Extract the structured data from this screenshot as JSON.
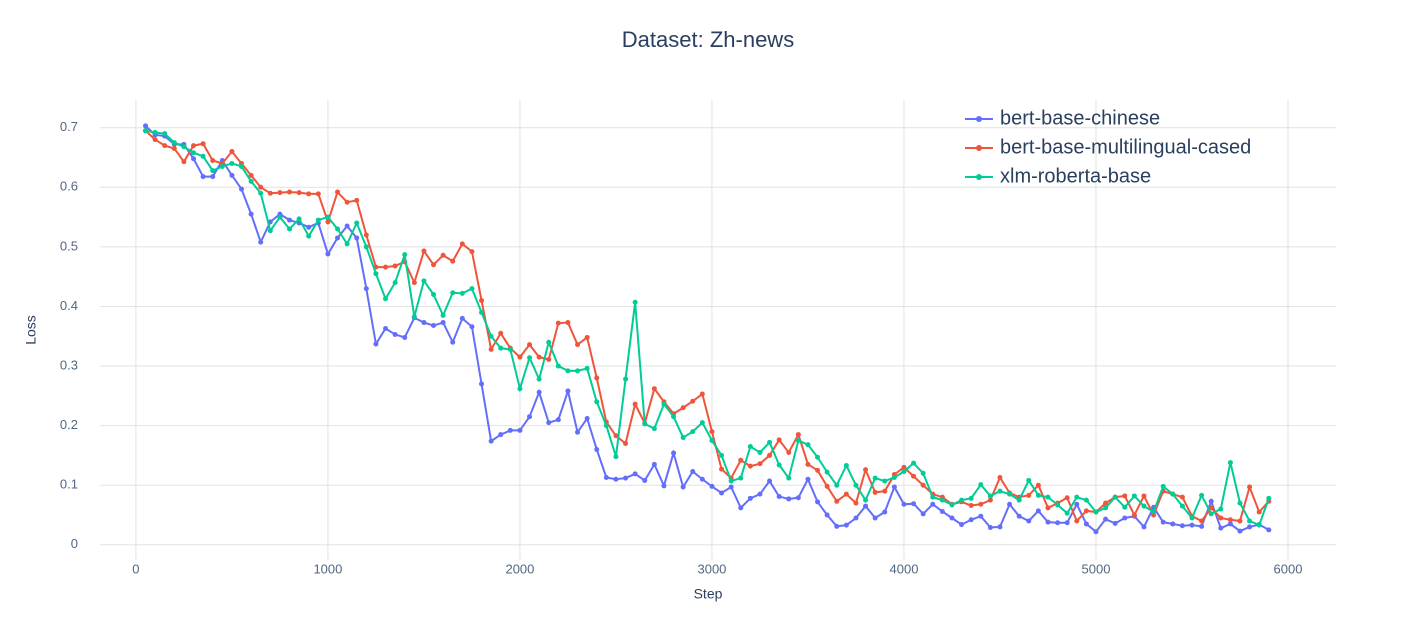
{
  "chart_data": {
    "type": "line",
    "title": "Dataset: Zh-news",
    "xlabel": "Step",
    "ylabel": "Loss",
    "x": [
      50,
      100,
      150,
      200,
      250,
      300,
      350,
      400,
      450,
      500,
      550,
      600,
      650,
      700,
      750,
      800,
      850,
      900,
      950,
      1000,
      1050,
      1100,
      1150,
      1200,
      1250,
      1300,
      1350,
      1400,
      1450,
      1500,
      1550,
      1600,
      1650,
      1700,
      1750,
      1800,
      1850,
      1900,
      1950,
      2000,
      2050,
      2100,
      2150,
      2200,
      2250,
      2300,
      2350,
      2400,
      2450,
      2500,
      2550,
      2600,
      2650,
      2700,
      2750,
      2800,
      2850,
      2900,
      2950,
      3000,
      3050,
      3100,
      3150,
      3200,
      3250,
      3300,
      3350,
      3400,
      3450,
      3500,
      3550,
      3600,
      3650,
      3700,
      3750,
      3800,
      3850,
      3900,
      3950,
      4000,
      4050,
      4100,
      4150,
      4200,
      4250,
      4300,
      4350,
      4400,
      4450,
      4500,
      4550,
      4600,
      4650,
      4700,
      4750,
      4800,
      4850,
      4900,
      4950,
      5000,
      5050,
      5100,
      5150,
      5200,
      5250,
      5300,
      5350,
      5400,
      5450,
      5500,
      5550,
      5600,
      5650,
      5700,
      5750,
      5800,
      5850,
      5900
    ],
    "series": [
      {
        "name": "bert-base-chinese",
        "color": "#636efa",
        "values": [
          0.703,
          0.688,
          0.686,
          0.672,
          0.672,
          0.648,
          0.618,
          0.618,
          0.645,
          0.62,
          0.597,
          0.555,
          0.508,
          0.542,
          0.555,
          0.545,
          0.54,
          0.533,
          0.54,
          0.488,
          0.515,
          0.535,
          0.515,
          0.43,
          0.337,
          0.363,
          0.353,
          0.348,
          0.381,
          0.373,
          0.368,
          0.373,
          0.34,
          0.38,
          0.366,
          0.27,
          0.174,
          0.185,
          0.192,
          0.192,
          0.215,
          0.256,
          0.205,
          0.21,
          0.258,
          0.189,
          0.212,
          0.16,
          0.113,
          0.11,
          0.112,
          0.119,
          0.108,
          0.135,
          0.099,
          0.154,
          0.097,
          0.123,
          0.11,
          0.098,
          0.087,
          0.097,
          0.062,
          0.078,
          0.085,
          0.107,
          0.081,
          0.077,
          0.079,
          0.11,
          0.072,
          0.05,
          0.031,
          0.033,
          0.045,
          0.065,
          0.045,
          0.055,
          0.097,
          0.068,
          0.069,
          0.052,
          0.068,
          0.056,
          0.045,
          0.034,
          0.042,
          0.048,
          0.029,
          0.03,
          0.068,
          0.048,
          0.04,
          0.057,
          0.038,
          0.037,
          0.037,
          0.068,
          0.035,
          0.022,
          0.043,
          0.036,
          0.045,
          0.048,
          0.03,
          0.063,
          0.038,
          0.035,
          0.032,
          0.033,
          0.031,
          0.073,
          0.028,
          0.035,
          0.023,
          0.03,
          0.034,
          0.025
        ]
      },
      {
        "name": "bert-base-multilingual-cased",
        "color": "#ef553b",
        "values": [
          0.695,
          0.68,
          0.67,
          0.665,
          0.643,
          0.67,
          0.673,
          0.645,
          0.64,
          0.66,
          0.64,
          0.62,
          0.6,
          0.59,
          0.591,
          0.592,
          0.591,
          0.589,
          0.589,
          0.542,
          0.592,
          0.575,
          0.578,
          0.52,
          0.466,
          0.466,
          0.468,
          0.475,
          0.44,
          0.493,
          0.47,
          0.486,
          0.476,
          0.505,
          0.492,
          0.41,
          0.328,
          0.355,
          0.33,
          0.315,
          0.336,
          0.315,
          0.311,
          0.372,
          0.373,
          0.336,
          0.348,
          0.28,
          0.206,
          0.183,
          0.17,
          0.236,
          0.204,
          0.262,
          0.24,
          0.22,
          0.23,
          0.241,
          0.253,
          0.19,
          0.127,
          0.112,
          0.142,
          0.132,
          0.136,
          0.15,
          0.176,
          0.155,
          0.185,
          0.135,
          0.125,
          0.098,
          0.073,
          0.085,
          0.07,
          0.126,
          0.088,
          0.09,
          0.118,
          0.13,
          0.115,
          0.1,
          0.085,
          0.08,
          0.068,
          0.072,
          0.066,
          0.068,
          0.075,
          0.113,
          0.087,
          0.08,
          0.083,
          0.1,
          0.062,
          0.07,
          0.079,
          0.04,
          0.057,
          0.055,
          0.07,
          0.08,
          0.082,
          0.05,
          0.082,
          0.05,
          0.09,
          0.085,
          0.08,
          0.048,
          0.04,
          0.062,
          0.045,
          0.042,
          0.04,
          0.097,
          0.055,
          0.073
        ]
      },
      {
        "name": "xlm-roberta-base",
        "color": "#00cc96",
        "values": [
          0.695,
          0.692,
          0.69,
          0.675,
          0.668,
          0.658,
          0.652,
          0.628,
          0.635,
          0.64,
          0.635,
          0.61,
          0.59,
          0.527,
          0.55,
          0.53,
          0.547,
          0.518,
          0.545,
          0.55,
          0.53,
          0.505,
          0.54,
          0.5,
          0.455,
          0.413,
          0.44,
          0.487,
          0.383,
          0.443,
          0.42,
          0.385,
          0.423,
          0.422,
          0.43,
          0.39,
          0.35,
          0.33,
          0.328,
          0.262,
          0.314,
          0.278,
          0.34,
          0.3,
          0.292,
          0.292,
          0.296,
          0.24,
          0.2,
          0.148,
          0.278,
          0.407,
          0.203,
          0.195,
          0.236,
          0.215,
          0.18,
          0.19,
          0.205,
          0.175,
          0.15,
          0.107,
          0.112,
          0.165,
          0.155,
          0.172,
          0.134,
          0.112,
          0.175,
          0.168,
          0.147,
          0.122,
          0.1,
          0.133,
          0.1,
          0.075,
          0.112,
          0.107,
          0.113,
          0.123,
          0.137,
          0.12,
          0.08,
          0.075,
          0.067,
          0.075,
          0.078,
          0.101,
          0.082,
          0.09,
          0.085,
          0.075,
          0.108,
          0.083,
          0.08,
          0.067,
          0.053,
          0.08,
          0.075,
          0.055,
          0.062,
          0.08,
          0.063,
          0.082,
          0.065,
          0.055,
          0.098,
          0.085,
          0.065,
          0.045,
          0.083,
          0.052,
          0.06,
          0.138,
          0.07,
          0.04,
          0.033,
          0.078
        ]
      }
    ],
    "xlim": [
      -187,
      6250
    ],
    "ylim": [
      -0.0255,
      0.7465
    ],
    "xticks": [
      0,
      1000,
      2000,
      3000,
      4000,
      5000,
      6000
    ],
    "yticks": [
      0,
      0.1,
      0.2,
      0.3,
      0.4,
      0.5,
      0.6,
      0.7
    ],
    "grid": true,
    "legend": "top-right"
  }
}
